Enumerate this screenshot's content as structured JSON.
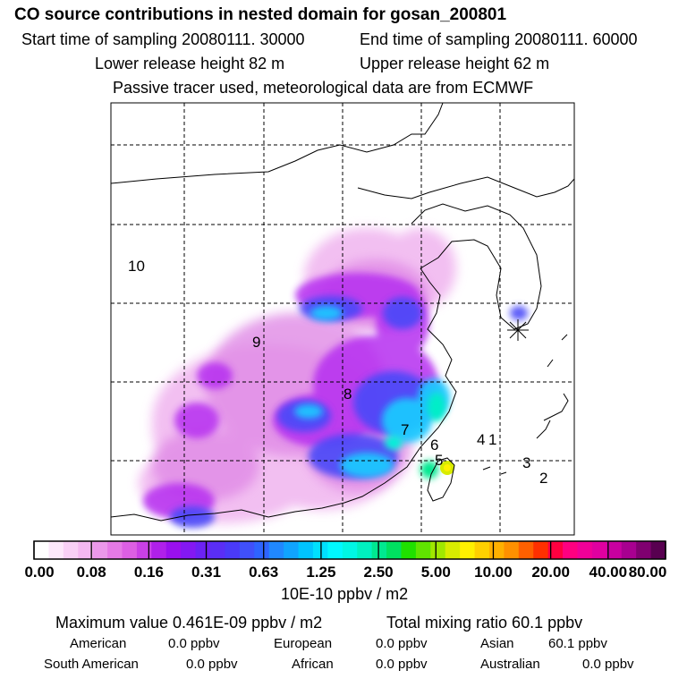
{
  "header": {
    "title": "CO  source contributions in nested domain for gosan_200801",
    "start_time": "Start time of sampling 20080111. 30000",
    "end_time": "End time of sampling 20080111. 60000",
    "lower_height": "Lower release height   82 m",
    "upper_height": "Upper release height   62 m",
    "tracer_note": "Passive tracer used, meteorological data are from ECMWF"
  },
  "map": {
    "region_labels": [
      "10",
      "9",
      "8",
      "7",
      "6",
      "5",
      "4",
      "1",
      "3",
      "2"
    ],
    "receptor_marker": "asterisk",
    "grid": "dashed"
  },
  "colorbar": {
    "tick_labels": [
      "0.00",
      "0.08",
      "0.16",
      "0.31",
      "0.63",
      "1.25",
      "2.50",
      "5.00",
      "10.00",
      "20.00",
      "40.00",
      "80.00"
    ],
    "unit": "10E-10 ppbv / m2",
    "colors": [
      "#ffffff",
      "#fce8fb",
      "#f8d0f6",
      "#f4b8f1",
      "#eb98ea",
      "#e57ae6",
      "#dc5fe4",
      "#c940e6",
      "#b020ea",
      "#9a10ee",
      "#8418f2",
      "#6c22f4",
      "#5a2ef6",
      "#4a3af8",
      "#4050fa",
      "#2e64ff",
      "#2088ff",
      "#10a4ff",
      "#00c4ff",
      "#00e0ff",
      "#00f8ff",
      "#00f6e4",
      "#00f0c0",
      "#00e890",
      "#00e060",
      "#20e000",
      "#60e400",
      "#a0e800",
      "#d8ec00",
      "#fff000",
      "#ffd000",
      "#ffb000",
      "#ff9000",
      "#ff6000",
      "#ff3000",
      "#ff0040",
      "#ff0080",
      "#f00098",
      "#e000a0",
      "#c800a0",
      "#a80090",
      "#800070",
      "#580050"
    ]
  },
  "stats": {
    "maximum": "Maximum value  0.461E-09 ppbv / m2",
    "total": "Total mixing ratio       60.1 ppbv",
    "regions": [
      {
        "name": "American",
        "value": "0.0 ppbv"
      },
      {
        "name": "European",
        "value": "0.0 ppbv"
      },
      {
        "name": "Asian",
        "value": "60.1 ppbv"
      },
      {
        "name": "South American",
        "value": "0.0 ppbv"
      },
      {
        "name": "African",
        "value": "0.0 ppbv"
      },
      {
        "name": "Australian",
        "value": "0.0 ppbv"
      }
    ]
  }
}
